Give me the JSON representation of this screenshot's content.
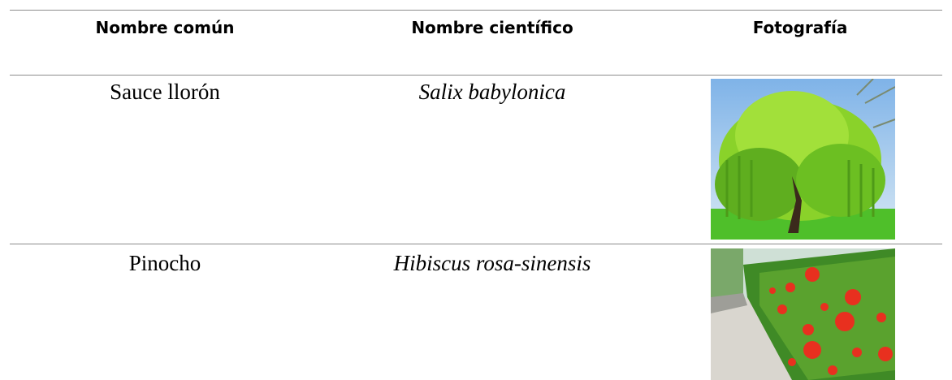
{
  "table": {
    "header": [
      "Nombre común",
      "Nombre científico",
      "Fotografía"
    ],
    "rows": [
      [
        "Sauce llorón",
        "Salix babylonica"
      ],
      [
        "Pinocho",
        "Hibiscus rosa-sinensis"
      ]
    ]
  }
}
